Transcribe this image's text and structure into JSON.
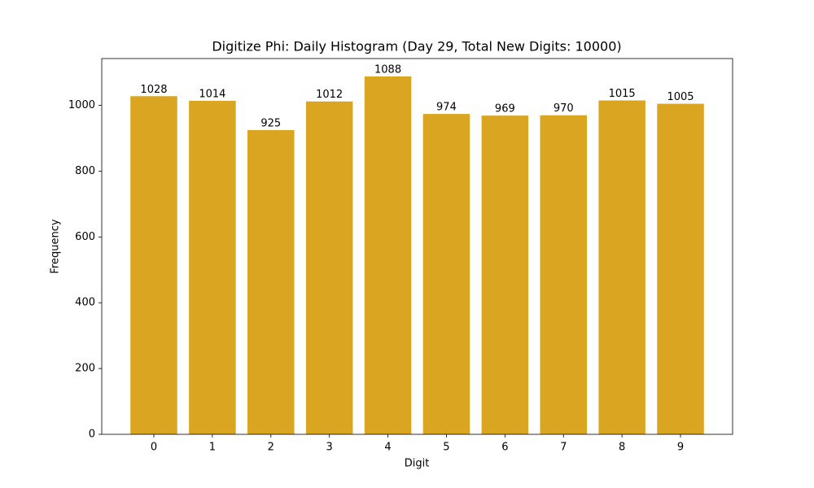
{
  "chart_data": {
    "type": "bar",
    "title": "Digitize Phi: Daily Histogram (Day 29, Total New Digits: 10000)",
    "x_label": "Digit",
    "y_label": "Frequency",
    "categories": [
      "0",
      "1",
      "2",
      "3",
      "4",
      "5",
      "6",
      "7",
      "8",
      "9"
    ],
    "values": [
      1028,
      1014,
      925,
      1012,
      1088,
      974,
      969,
      970,
      1015,
      1005
    ],
    "color": "#daa520",
    "ylim": [
      0,
      1142.4
    ],
    "yticks": [
      0,
      200,
      400,
      600,
      800,
      1000
    ],
    "grid": false
  }
}
